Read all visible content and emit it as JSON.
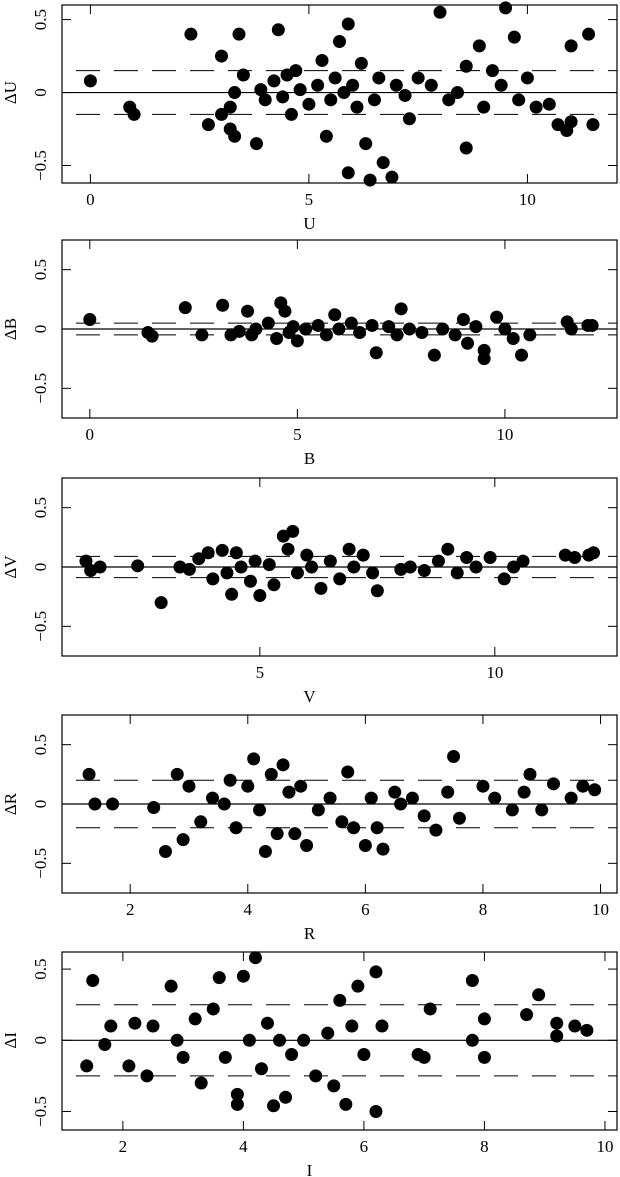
{
  "chart_data": [
    {
      "type": "scatter",
      "xlabel": "U",
      "ylabel": "ΔU",
      "color": "#000000",
      "xlim": [
        -0.65,
        12.05
      ],
      "ylim": [
        -0.62,
        0.6
      ],
      "xticks": [
        0,
        5,
        10
      ],
      "yticks": [
        {
          "value": -0.5,
          "label": "−0.5"
        },
        0,
        0.5
      ],
      "solid_lines": [
        0
      ],
      "dashed_lines": [
        -0.15,
        0.15
      ],
      "x": [
        0,
        0.9,
        1.0,
        2.3,
        2.7,
        3.0,
        3.0,
        3.2,
        3.2,
        3.3,
        3.3,
        3.4,
        3.5,
        3.8,
        3.9,
        4.0,
        4.2,
        4.3,
        4.4,
        4.5,
        4.6,
        4.7,
        4.8,
        5.0,
        5.2,
        5.3,
        5.4,
        5.5,
        5.6,
        5.7,
        5.8,
        5.9,
        5.9,
        6.0,
        6.1,
        6.2,
        6.3,
        6.4,
        6.5,
        6.6,
        6.7,
        6.9,
        7.0,
        7.2,
        7.3,
        7.5,
        7.8,
        8.0,
        8.2,
        8.4,
        8.6,
        8.6,
        8.9,
        9.0,
        9.2,
        9.4,
        9.5,
        9.7,
        9.8,
        10.0,
        10.2,
        10.5,
        10.7,
        10.9,
        11.0,
        11.0,
        11.4,
        11.5
      ],
      "y": [
        0.08,
        -0.1,
        -0.15,
        0.4,
        -0.22,
        0.25,
        -0.15,
        -0.1,
        -0.25,
        -0.3,
        0.0,
        0.4,
        0.12,
        -0.35,
        0.02,
        -0.05,
        0.08,
        0.43,
        -0.03,
        0.12,
        -0.15,
        0.15,
        0.02,
        -0.08,
        0.05,
        0.22,
        -0.3,
        -0.05,
        0.1,
        0.35,
        0.0,
        -0.55,
        0.47,
        0.05,
        -0.1,
        0.2,
        -0.35,
        -0.6,
        -0.05,
        0.1,
        -0.48,
        -0.58,
        0.05,
        -0.02,
        -0.18,
        0.1,
        0.05,
        0.55,
        -0.05,
        0.0,
        -0.38,
        0.18,
        0.32,
        -0.1,
        0.15,
        0.05,
        0.58,
        0.38,
        -0.05,
        0.1,
        -0.1,
        -0.08,
        -0.22,
        -0.26,
        0.32,
        -0.2,
        0.4,
        -0.22
      ]
    },
    {
      "type": "scatter",
      "xlabel": "B",
      "ylabel": "ΔB",
      "color": "#000000",
      "xlim": [
        -0.67,
        12.7
      ],
      "ylim": [
        -0.75,
        0.75
      ],
      "xticks": [
        0,
        5,
        10
      ],
      "yticks": [
        {
          "value": -0.5,
          "label": "−0.5"
        },
        0,
        0.5
      ],
      "solid_lines": [
        0
      ],
      "dashed_lines": [
        -0.05,
        0.05
      ],
      "x": [
        0,
        1.4,
        1.5,
        2.3,
        2.7,
        3.2,
        3.4,
        3.6,
        3.8,
        3.9,
        4.0,
        4.3,
        4.5,
        4.6,
        4.7,
        4.8,
        4.9,
        5.0,
        5.2,
        5.5,
        5.7,
        5.9,
        6.0,
        6.3,
        6.5,
        6.8,
        6.9,
        7.2,
        7.4,
        7.5,
        7.7,
        8.0,
        8.3,
        8.5,
        8.8,
        9.0,
        9.1,
        9.3,
        9.5,
        9.5,
        9.8,
        10.0,
        10.2,
        10.4,
        10.6,
        11.5,
        11.6,
        12.0,
        12.1
      ],
      "y": [
        0.08,
        -0.03,
        -0.06,
        0.18,
        -0.05,
        0.2,
        -0.05,
        -0.02,
        0.15,
        -0.05,
        0.0,
        0.05,
        -0.08,
        0.22,
        0.15,
        -0.03,
        0.02,
        -0.1,
        0.0,
        0.03,
        -0.05,
        0.12,
        0.0,
        0.05,
        -0.03,
        0.03,
        -0.2,
        0.02,
        -0.05,
        0.17,
        0.0,
        -0.03,
        -0.22,
        0.0,
        -0.05,
        0.08,
        -0.12,
        0.02,
        -0.18,
        -0.25,
        0.1,
        0.0,
        -0.08,
        -0.22,
        -0.05,
        0.06,
        0.0,
        0.03,
        0.03
      ]
    },
    {
      "type": "scatter",
      "xlabel": "V",
      "ylabel": "ΔV",
      "color": "#000000",
      "xlim": [
        0.79,
        12.6
      ],
      "ylim": [
        -0.75,
        0.75
      ],
      "xticks": [
        5,
        10
      ],
      "yticks": [
        {
          "value": -0.5,
          "label": "−0.5"
        },
        0,
        0.5
      ],
      "solid_lines": [
        0
      ],
      "dashed_lines": [
        -0.09,
        0.09
      ],
      "x": [
        1.3,
        1.4,
        1.6,
        2.4,
        2.9,
        3.3,
        3.5,
        3.7,
        3.9,
        4.0,
        4.2,
        4.3,
        4.4,
        4.5,
        4.6,
        4.8,
        4.9,
        5.0,
        5.2,
        5.3,
        5.5,
        5.6,
        5.7,
        5.8,
        6.0,
        6.1,
        6.3,
        6.5,
        6.7,
        6.9,
        7.0,
        7.2,
        7.4,
        7.5,
        8.0,
        8.2,
        8.5,
        8.8,
        9.0,
        9.2,
        9.4,
        9.6,
        9.9,
        10.2,
        10.4,
        10.6,
        11.5,
        11.7,
        12.0,
        12.1
      ],
      "y": [
        0.05,
        -0.03,
        0.0,
        0.01,
        -0.3,
        0.0,
        -0.02,
        0.07,
        0.12,
        -0.1,
        0.14,
        -0.05,
        -0.23,
        0.12,
        0.0,
        -0.12,
        0.05,
        -0.24,
        0.02,
        -0.15,
        0.26,
        0.15,
        0.3,
        -0.05,
        0.1,
        0.0,
        -0.18,
        0.05,
        -0.1,
        0.15,
        0.0,
        0.1,
        -0.05,
        -0.2,
        -0.02,
        0.0,
        -0.03,
        0.05,
        0.15,
        -0.05,
        0.08,
        0.0,
        0.08,
        -0.1,
        0.0,
        0.05,
        0.1,
        0.08,
        0.1,
        0.12
      ]
    },
    {
      "type": "scatter",
      "xlabel": "R",
      "ylabel": "ΔR",
      "color": "#000000",
      "xlim": [
        0.84,
        10.28
      ],
      "ylim": [
        -0.75,
        0.75
      ],
      "xticks": [
        2,
        4,
        6,
        8,
        10
      ],
      "yticks": [
        {
          "value": -0.5,
          "label": "−0.5"
        },
        0,
        0.5
      ],
      "solid_lines": [
        0
      ],
      "dashed_lines": [
        -0.2,
        0.2
      ],
      "x": [
        1.3,
        1.4,
        1.7,
        2.4,
        2.6,
        2.8,
        2.9,
        3.0,
        3.2,
        3.4,
        3.6,
        3.7,
        3.8,
        4.0,
        4.1,
        4.2,
        4.3,
        4.4,
        4.5,
        4.6,
        4.7,
        4.8,
        4.9,
        5.0,
        5.2,
        5.4,
        5.6,
        5.7,
        5.8,
        6.0,
        6.1,
        6.2,
        6.3,
        6.5,
        6.6,
        6.8,
        7.0,
        7.2,
        7.4,
        7.5,
        7.6,
        8.0,
        8.2,
        8.5,
        8.7,
        8.8,
        9.0,
        9.2,
        9.5,
        9.7,
        9.9
      ],
      "y": [
        0.25,
        0.0,
        0.0,
        -0.03,
        -0.4,
        0.25,
        -0.3,
        0.15,
        -0.15,
        0.05,
        0.0,
        0.2,
        -0.2,
        0.15,
        0.38,
        -0.05,
        -0.4,
        0.25,
        -0.25,
        0.33,
        0.1,
        -0.25,
        0.15,
        -0.35,
        -0.05,
        0.05,
        -0.15,
        0.27,
        -0.2,
        -0.35,
        0.05,
        -0.2,
        -0.38,
        0.1,
        0.0,
        0.05,
        -0.1,
        -0.22,
        0.1,
        0.4,
        -0.12,
        0.15,
        0.05,
        -0.05,
        0.1,
        0.25,
        -0.05,
        0.17,
        0.05,
        0.15,
        0.12
      ]
    },
    {
      "type": "scatter",
      "xlabel": "I",
      "ylabel": "ΔI",
      "color": "#000000",
      "xlim": [
        0.99,
        10.2
      ],
      "ylim": [
        -0.63,
        0.62
      ],
      "xticks": [
        2,
        4,
        6,
        8,
        10
      ],
      "yticks": [
        {
          "value": -0.5,
          "label": "−0.5"
        },
        0,
        0.5
      ],
      "solid_lines": [
        0
      ],
      "dashed_lines": [
        -0.25,
        0.25
      ],
      "x": [
        1.4,
        1.5,
        1.7,
        1.8,
        2.1,
        2.2,
        2.4,
        2.5,
        2.8,
        2.9,
        3.0,
        3.2,
        3.3,
        3.5,
        3.6,
        3.7,
        3.9,
        3.9,
        4.0,
        4.1,
        4.2,
        4.3,
        4.4,
        4.5,
        4.6,
        4.7,
        4.8,
        5.0,
        5.2,
        5.4,
        5.5,
        5.6,
        5.7,
        5.8,
        5.9,
        6.0,
        6.2,
        6.2,
        6.3,
        6.9,
        7.0,
        7.1,
        7.8,
        7.8,
        8.0,
        8.0,
        8.7,
        8.9,
        9.2,
        9.2,
        9.5,
        9.7
      ],
      "y": [
        -0.18,
        0.42,
        -0.03,
        0.1,
        -0.18,
        0.12,
        -0.25,
        0.1,
        0.38,
        0.0,
        -0.12,
        0.15,
        -0.3,
        0.22,
        0.44,
        -0.12,
        -0.38,
        -0.45,
        0.45,
        0.0,
        0.58,
        -0.2,
        0.12,
        -0.46,
        0.0,
        -0.4,
        -0.1,
        0.0,
        -0.25,
        0.05,
        -0.32,
        0.28,
        -0.45,
        0.1,
        0.38,
        -0.1,
        0.48,
        -0.5,
        0.1,
        -0.1,
        -0.12,
        0.22,
        0.42,
        0.0,
        -0.12,
        0.15,
        0.18,
        0.32,
        0.12,
        0.03,
        0.1,
        0.07
      ]
    }
  ]
}
